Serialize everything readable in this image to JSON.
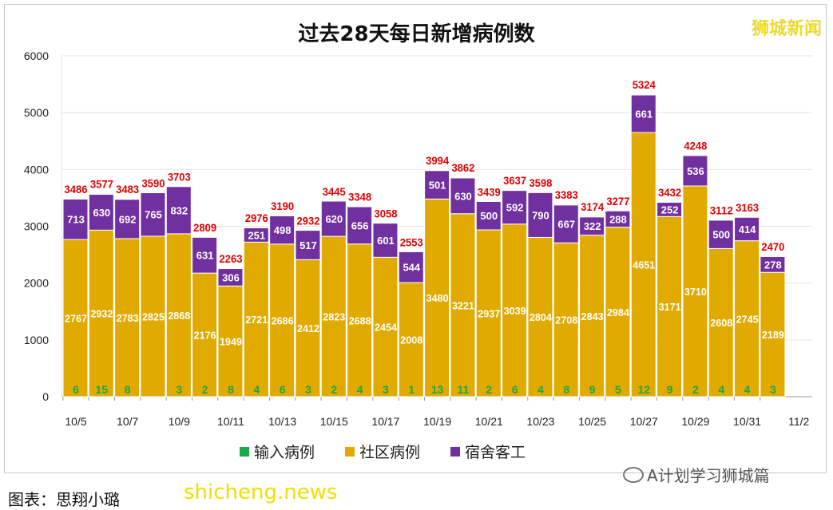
{
  "chart_data": {
    "type": "bar",
    "stacked": true,
    "title": "过去28天每日新增病例数",
    "categories": [
      "10/5",
      "10/6",
      "10/7",
      "10/8",
      "10/9",
      "10/10",
      "10/11",
      "10/12",
      "10/13",
      "10/14",
      "10/15",
      "10/16",
      "10/17",
      "10/18",
      "10/19",
      "10/20",
      "10/21",
      "10/22",
      "10/23",
      "10/24",
      "10/25",
      "10/26",
      "10/27",
      "10/28",
      "10/29",
      "10/30",
      "10/31",
      "11/1"
    ],
    "x_tick_labels": [
      "10/5",
      "10/7",
      "10/9",
      "10/11",
      "10/13",
      "10/15",
      "10/17",
      "10/19",
      "10/21",
      "10/23",
      "10/25",
      "10/27",
      "10/29",
      "10/31",
      "11/2"
    ],
    "y_ticks": [
      0,
      1000,
      2000,
      3000,
      4000,
      5000,
      6000
    ],
    "ylim": [
      0,
      6000
    ],
    "grid": true,
    "legend_position": "bottom",
    "series": [
      {
        "name": "输入病例",
        "color": "#1aa84a",
        "values": [
          6,
          15,
          8,
          0,
          3,
          2,
          8,
          4,
          6,
          3,
          2,
          4,
          3,
          1,
          13,
          11,
          2,
          6,
          4,
          8,
          9,
          5,
          12,
          9,
          2,
          4,
          4,
          3
        ]
      },
      {
        "name": "社区病例",
        "color": "#e0aa00",
        "values": [
          2767,
          2932,
          2783,
          2825,
          2868,
          2176,
          1949,
          2721,
          2686,
          2412,
          2823,
          2688,
          2454,
          2008,
          3480,
          3221,
          2937,
          3039,
          2804,
          2708,
          2843,
          2984,
          4651,
          3171,
          3710,
          2608,
          2745,
          2189
        ]
      },
      {
        "name": "宿舍客工",
        "color": "#7030a0",
        "values": [
          713,
          630,
          692,
          765,
          832,
          631,
          306,
          251,
          498,
          517,
          620,
          656,
          601,
          544,
          501,
          630,
          500,
          592,
          790,
          667,
          322,
          288,
          661,
          252,
          536,
          500,
          414,
          278
        ]
      }
    ],
    "totals": [
      3486,
      3577,
      3483,
      3590,
      3703,
      2809,
      2263,
      2976,
      3190,
      2932,
      3445,
      3348,
      3058,
      2553,
      3994,
      3862,
      3439,
      3637,
      3598,
      3383,
      3174,
      3277,
      5324,
      3432,
      4248,
      3112,
      3163,
      2470
    ],
    "total_label_color": "#e00000"
  },
  "watermark_top": "狮城新闻",
  "credit": "图表：思翔小璐",
  "watermark_bottom": "shicheng.news",
  "wechat_source": "A计划学习狮城篇"
}
